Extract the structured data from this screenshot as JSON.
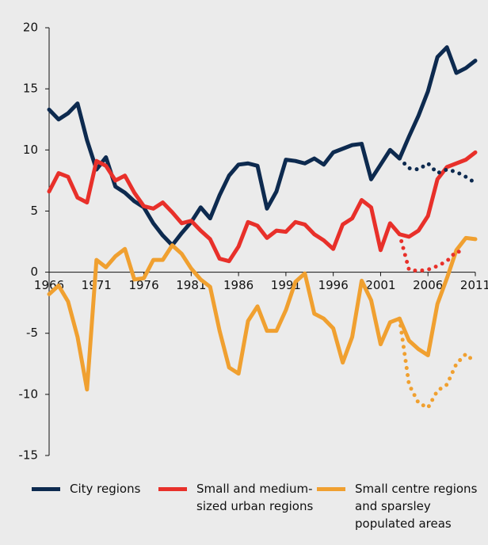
{
  "chart_data": {
    "type": "line",
    "x": [
      1966,
      1967,
      1968,
      1969,
      1970,
      1971,
      1972,
      1973,
      1974,
      1975,
      1976,
      1977,
      1978,
      1979,
      1980,
      1981,
      1982,
      1983,
      1984,
      1985,
      1986,
      1987,
      1988,
      1989,
      1990,
      1991,
      1992,
      1993,
      1994,
      1995,
      1996,
      1997,
      1998,
      1999,
      2000,
      2001,
      2002,
      2003,
      2004,
      2005,
      2006,
      2007,
      2008,
      2009,
      2010,
      2011
    ],
    "xlim": [
      1966,
      2011
    ],
    "xticks": [
      1966,
      1971,
      1976,
      1981,
      1986,
      1991,
      1996,
      2001,
      2006,
      2011
    ],
    "ylim": [
      -15,
      20
    ],
    "yticks": [
      -15,
      -10,
      -5,
      0,
      5,
      10,
      15,
      20
    ],
    "series": [
      {
        "name": "City regions",
        "color": "#0d2a4f",
        "values": [
          13.3,
          12.5,
          13.0,
          13.8,
          10.8,
          8.4,
          9.4,
          7.0,
          6.5,
          5.8,
          5.3,
          4.0,
          3.0,
          2.2,
          3.2,
          4.1,
          5.3,
          4.4,
          6.3,
          7.9,
          8.8,
          8.9,
          8.7,
          5.2,
          6.6,
          9.2,
          9.1,
          8.9,
          9.3,
          8.8,
          9.8,
          10.1,
          10.4,
          10.5,
          7.6,
          8.8,
          10.0,
          9.3,
          11.1,
          12.8,
          14.8,
          17.6,
          18.4,
          16.3,
          16.7,
          17.3
        ]
      },
      {
        "name": "Small and medium-sized urban regions",
        "color": "#e8302a",
        "values": [
          6.6,
          8.1,
          7.8,
          6.1,
          5.7,
          9.1,
          8.7,
          7.5,
          7.9,
          6.5,
          5.4,
          5.2,
          5.7,
          4.9,
          4.0,
          4.2,
          3.4,
          2.7,
          1.1,
          0.9,
          2.1,
          4.1,
          3.8,
          2.8,
          3.4,
          3.3,
          4.1,
          3.9,
          3.1,
          2.6,
          1.9,
          3.9,
          4.4,
          5.9,
          5.3,
          1.8,
          4.0,
          3.1,
          2.9,
          3.4,
          4.6,
          7.6,
          8.6,
          8.9,
          9.2,
          9.8
        ]
      },
      {
        "name": "Small centre regions and sparsley populated areas",
        "color": "#f0a030",
        "values": [
          -1.8,
          -1.1,
          -2.4,
          -5.3,
          -9.6,
          1.0,
          0.4,
          1.3,
          1.9,
          -0.6,
          -0.5,
          1.0,
          1.0,
          2.2,
          1.5,
          0.3,
          -0.6,
          -1.2,
          -4.8,
          -7.8,
          -8.3,
          -4.0,
          -2.8,
          -4.8,
          -4.8,
          -3.1,
          -0.8,
          -0.1,
          -3.4,
          -3.8,
          -4.6,
          -7.4,
          -5.3,
          -0.7,
          -2.3,
          -5.9,
          -4.1,
          -3.8,
          -5.6,
          -6.3,
          -6.8,
          -2.6,
          -0.5,
          1.8,
          2.8,
          2.7
        ]
      },
      {
        "color": "#0d2a4f",
        "dash": "dotted",
        "values": [
          null,
          null,
          null,
          null,
          null,
          null,
          null,
          null,
          null,
          null,
          null,
          null,
          null,
          null,
          null,
          null,
          null,
          null,
          null,
          null,
          null,
          null,
          null,
          null,
          null,
          null,
          null,
          null,
          null,
          null,
          null,
          null,
          null,
          null,
          null,
          null,
          null,
          9.3,
          8.5,
          8.4,
          8.9,
          8.1,
          8.4,
          8.2,
          7.8,
          7.3
        ]
      },
      {
        "color": "#e8302a",
        "dash": "dotted",
        "values": [
          null,
          null,
          null,
          null,
          null,
          null,
          null,
          null,
          null,
          null,
          null,
          null,
          null,
          null,
          null,
          null,
          null,
          null,
          null,
          null,
          null,
          null,
          null,
          null,
          null,
          null,
          null,
          null,
          null,
          null,
          null,
          null,
          null,
          null,
          null,
          null,
          null,
          3.1,
          0.2,
          0.1,
          0.2,
          0.5,
          0.9,
          1.7,
          1.6,
          null
        ]
      },
      {
        "color": "#f0a030",
        "dash": "dotted",
        "values": [
          null,
          null,
          null,
          null,
          null,
          null,
          null,
          null,
          null,
          null,
          null,
          null,
          null,
          null,
          null,
          null,
          null,
          null,
          null,
          null,
          null,
          null,
          null,
          null,
          null,
          null,
          null,
          null,
          null,
          null,
          null,
          null,
          null,
          null,
          null,
          null,
          null,
          -3.8,
          -9.2,
          -10.7,
          -11.1,
          -9.7,
          -9.2,
          -7.5,
          -6.7,
          -7.4
        ]
      }
    ]
  }
}
